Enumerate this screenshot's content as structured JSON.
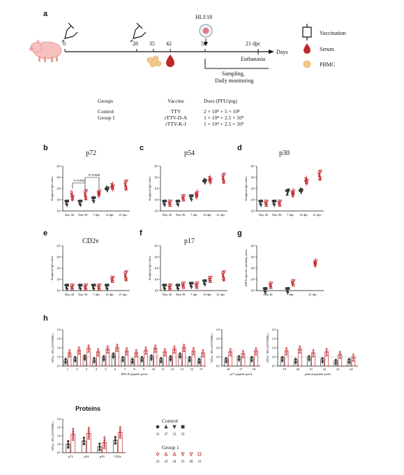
{
  "panel_labels": [
    "a",
    "b",
    "c",
    "d",
    "e",
    "f",
    "g",
    "h"
  ],
  "timeline": {
    "days": [
      "0",
      "28",
      "35",
      "42",
      "56",
      "21 dpc"
    ],
    "axis_label": "Days",
    "challenge": "HLJ/18",
    "euthanasia": "Euthanasia",
    "sampling": "Sampling,",
    "monitoring": "Daily monitoring",
    "legend": [
      "Vaccination",
      "Serum",
      "PBMC"
    ]
  },
  "table": {
    "headers": [
      "Groups",
      "Vaccine",
      "Does (PFU/pig)"
    ],
    "rows": [
      [
        "Control",
        "TTV",
        "2 × 10⁸ + 5 × 10⁸"
      ],
      [
        "Group 1",
        "rTTV-D-A",
        "1 × 10⁸ + 2.5 × 10⁸"
      ],
      [
        "",
        "rTTV-K-J",
        "1 × 10⁸ + 2.5 × 10⁸"
      ]
    ]
  },
  "igg_panels": {
    "b": {
      "title": "p72",
      "ylabel": "Endpoint IgG titers",
      "pvals": [
        "P=0.0381",
        "P=0.0048"
      ]
    },
    "c": {
      "title": "p54",
      "ylabel": "Endpoint IgG titers"
    },
    "d": {
      "title": "p30",
      "ylabel": "Endpoint IgG titers"
    },
    "e": {
      "title": "CD2v",
      "ylabel": "Endpoint IgG titers"
    },
    "f": {
      "title": "p17",
      "ylabel": "Endpoint IgG titers"
    },
    "g": {
      "title": "",
      "ylabel": "ASFV-specific antibody titers"
    }
  },
  "xcats5": [
    "Day 42",
    "Day 56",
    "7 dpc",
    "14 dpc",
    "21 dpc"
  ],
  "xcats3": [
    "Day 42",
    "7 dpc",
    "21 dpc"
  ],
  "yticks": [
    "10¹",
    "10²",
    "10³",
    "10⁴",
    "10⁵"
  ],
  "h": {
    "ylabel": "IFN-γ⁺ SFCs/10⁶ PBMCs",
    "mtce_label": "MTCE peptide pools",
    "p17_label": "p17 peptide pools",
    "penton_label": "penton peptide pools",
    "mtce_pools": [
      "1",
      "2",
      "3",
      "4",
      "5",
      "6",
      "7",
      "8",
      "9",
      "10",
      "11",
      "12",
      "13",
      "14",
      "15"
    ],
    "p17_pools": [
      "16",
      "17",
      "18"
    ],
    "penton_pools": [
      "19",
      "20",
      "21",
      "22",
      "23",
      "24"
    ],
    "proteins_title": "Proteins",
    "protein_cats": [
      "p72",
      "p54",
      "p30",
      "CD2v"
    ],
    "yticks": [
      "10⁰",
      "10¹",
      "10²",
      "10³",
      "10⁴"
    ]
  },
  "animal_legend": {
    "control_title": "Control",
    "control_ids": [
      "21",
      "27",
      "33",
      "35"
    ],
    "group1_title": "Group 1",
    "group1_ids": [
      "22",
      "23",
      "24",
      "25",
      "28",
      "31"
    ]
  },
  "colors": {
    "control": "#3a3a3a",
    "group1": "#c0282d"
  },
  "chart_data": [
    {
      "type": "scatter",
      "panel": "b",
      "title": "p72",
      "categories": [
        "Day 42",
        "Day 56",
        "7 dpc",
        "14 dpc",
        "21 dpc"
      ],
      "series": [
        {
          "name": "Control",
          "values": [
            50,
            50,
            100,
            1000,
            null
          ]
        },
        {
          "name": "Group 1",
          "values": [
            200,
            300,
            400,
            1500,
            2000
          ]
        }
      ]
    },
    {
      "type": "scatter",
      "panel": "c",
      "title": "p54",
      "categories": [
        "Day 42",
        "Day 56",
        "7 dpc",
        "14 dpc",
        "21 dpc"
      ],
      "series": [
        {
          "name": "Control",
          "values": [
            50,
            50,
            150,
            5000,
            null
          ]
        },
        {
          "name": "Group 1",
          "values": [
            50,
            150,
            300,
            6000,
            8000
          ]
        }
      ]
    },
    {
      "type": "scatter",
      "panel": "d",
      "title": "p30",
      "categories": [
        "Day 42",
        "Day 56",
        "7 dpc",
        "14 dpc",
        "21 dpc"
      ],
      "series": [
        {
          "name": "Control",
          "values": [
            50,
            50,
            500,
            700,
            null
          ]
        },
        {
          "name": "Group 1",
          "values": [
            50,
            50,
            400,
            5000,
            15000
          ]
        }
      ]
    },
    {
      "type": "scatter",
      "panel": "e",
      "title": "CD2v",
      "categories": [
        "Day 42",
        "Day 56",
        "7 dpc",
        "14 dpc",
        "21 dpc"
      ],
      "series": [
        {
          "name": "Control",
          "values": [
            20,
            20,
            20,
            20,
            null
          ]
        },
        {
          "name": "Group 1",
          "values": [
            20,
            20,
            20,
            100,
            200
          ]
        }
      ]
    },
    {
      "type": "scatter",
      "panel": "f",
      "title": "p17",
      "categories": [
        "Day 42",
        "Day 56",
        "7 dpc",
        "14 dpc",
        "21 dpc"
      ],
      "series": [
        {
          "name": "Control",
          "values": [
            20,
            20,
            30,
            50,
            null
          ]
        },
        {
          "name": "Group 1",
          "values": [
            20,
            30,
            30,
            100,
            200
          ]
        }
      ]
    },
    {
      "type": "scatter",
      "panel": "g",
      "categories": [
        "Day 42",
        "7 dpc",
        "21 dpc"
      ],
      "series": [
        {
          "name": "Control",
          "values": [
            1,
            10,
            null
          ]
        },
        {
          "name": "Group 1",
          "values": [
            30,
            50,
            3000
          ]
        }
      ]
    }
  ]
}
